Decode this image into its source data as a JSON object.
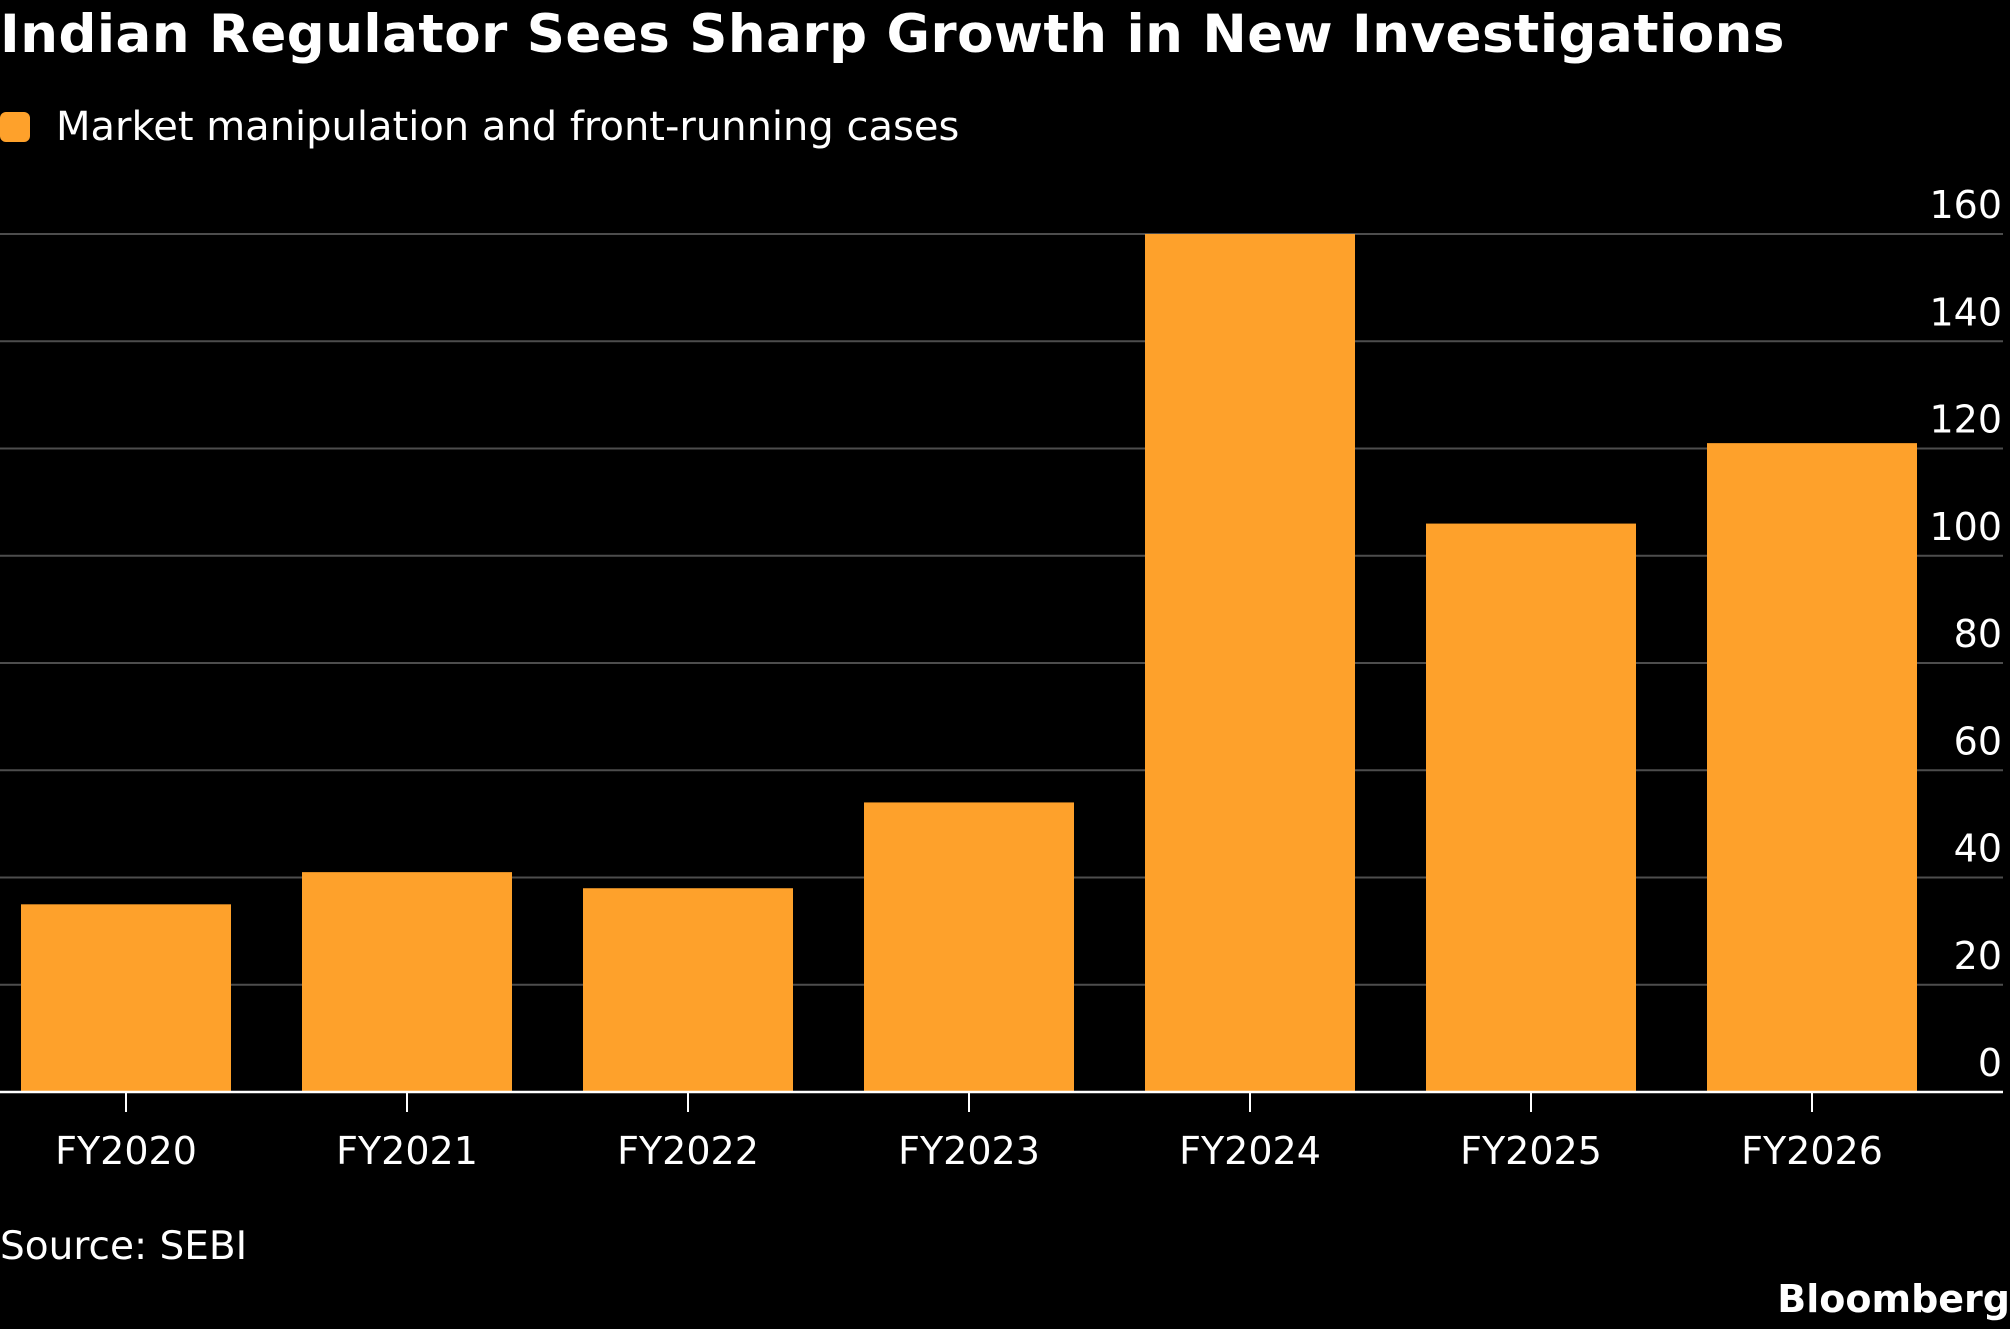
{
  "title": "Indian Regulator Sees Sharp Growth in New Investigations",
  "legend": {
    "label": "Market manipulation and front-running cases",
    "color": "#fea12b"
  },
  "source": "Source: SEBI",
  "brand": "Bloomberg",
  "colors": {
    "background": "#000000",
    "bar": "#fea12b",
    "gridline": "#4d4d4d",
    "axis": "#ffffff",
    "text": "#ffffff"
  },
  "chart_data": {
    "type": "bar",
    "categories": [
      "FY2020",
      "FY2021",
      "FY2022",
      "FY2023",
      "FY2024",
      "FY2025",
      "FY2026"
    ],
    "series": [
      {
        "name": "Market manipulation and front-running cases",
        "values": [
          35,
          41,
          38,
          54,
          160,
          106,
          121
        ]
      }
    ],
    "ylim": [
      0,
      160
    ],
    "yticks": [
      "0",
      "20",
      "40",
      "60",
      "80",
      "100",
      "120",
      "140",
      "160"
    ],
    "yaxis_position": "right",
    "grid": true,
    "legend_position": "top-left"
  }
}
